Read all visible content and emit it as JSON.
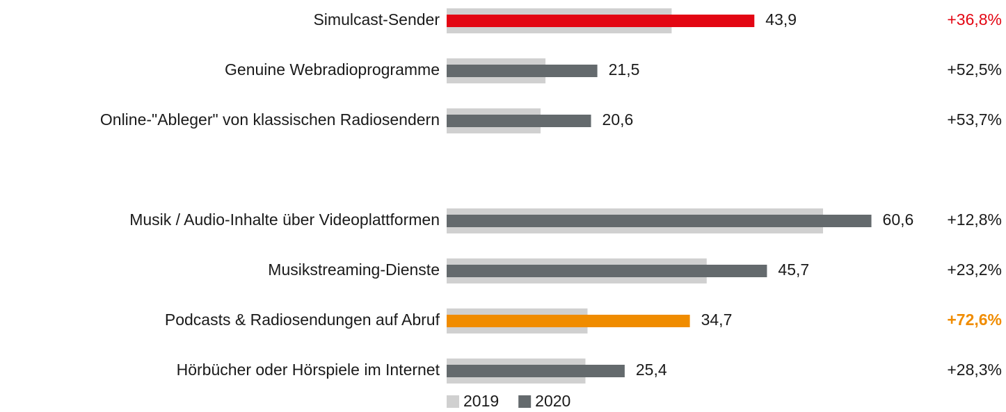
{
  "chart_data": {
    "type": "bar",
    "orientation": "horizontal",
    "categories": [
      "Simulcast-Sender",
      "Genuine Webradioprogramme",
      "Online-\"Ableger\" von klassischen Radiosendern",
      null,
      "Musik / Audio-Inhalte über Videoplattformen",
      "Musikstreaming-Dienste",
      "Podcasts & Radiosendungen auf Abruf",
      "Hörbücher oder Hörspiele im Internet"
    ],
    "series": [
      {
        "name": "2019",
        "color": "#d0d0d0",
        "values": [
          32.1,
          14.1,
          13.4,
          null,
          53.7,
          37.1,
          20.1,
          19.8
        ]
      },
      {
        "name": "2020",
        "color": "#646a6d",
        "colors": [
          "#e30613",
          "#646a6d",
          "#646a6d",
          null,
          "#646a6d",
          "#646a6d",
          "#f08c00",
          "#646a6d"
        ],
        "values": [
          43.9,
          21.5,
          20.6,
          null,
          60.6,
          45.7,
          34.7,
          25.4
        ],
        "value_labels": [
          "43,9",
          "21,5",
          "20,6",
          null,
          "60,6",
          "45,7",
          "34,7",
          "25,4"
        ]
      }
    ],
    "change_labels": [
      "+36,8%",
      "+52,5%",
      "+53,7%",
      null,
      "+12,8%",
      "+23,2%",
      "+72,6%",
      "+28,3%"
    ],
    "change_label_colors": [
      "#e30613",
      "#1a1a1a",
      "#1a1a1a",
      null,
      "#1a1a1a",
      "#1a1a1a",
      "#f08c00",
      "#1a1a1a"
    ],
    "change_label_weights": [
      "normal",
      "normal",
      "normal",
      null,
      "normal",
      "normal",
      "bold",
      "normal"
    ],
    "xlim": [
      0,
      80
    ],
    "legend": "bottom"
  }
}
